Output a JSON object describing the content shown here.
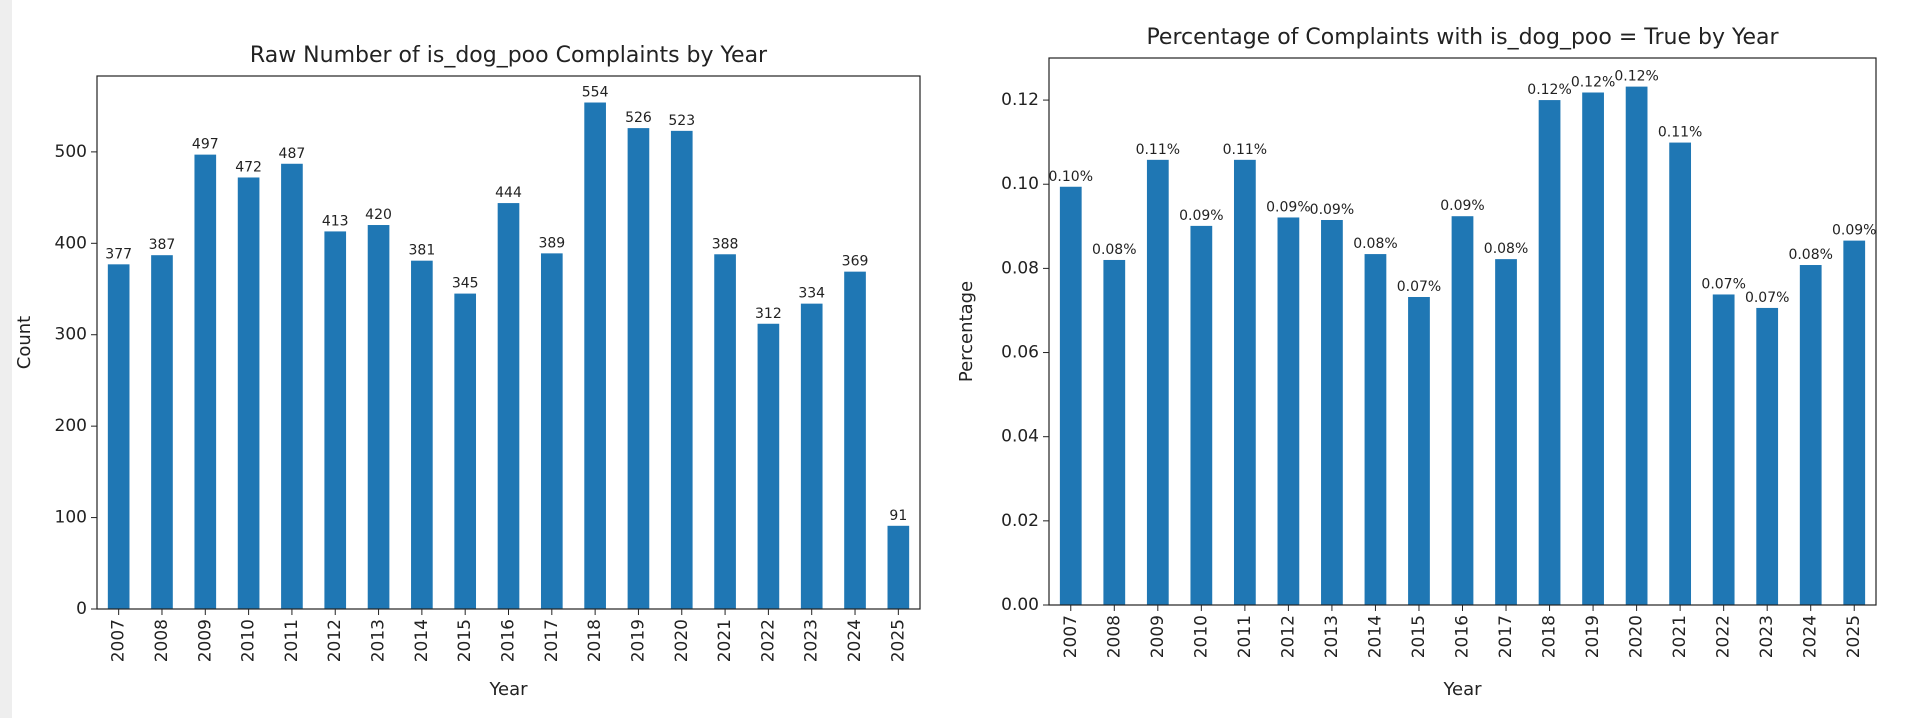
{
  "chart_data": [
    {
      "type": "bar",
      "title": "Raw Number of is_dog_poo Complaints by Year",
      "x_label": "Year",
      "y_label": "Count",
      "categories": [
        "2007",
        "2008",
        "2009",
        "2010",
        "2011",
        "2012",
        "2013",
        "2014",
        "2015",
        "2016",
        "2017",
        "2018",
        "2019",
        "2020",
        "2021",
        "2022",
        "2023",
        "2024",
        "2025"
      ],
      "values": [
        377,
        387,
        497,
        472,
        487,
        413,
        420,
        381,
        345,
        444,
        389,
        554,
        526,
        523,
        388,
        312,
        334,
        369,
        91
      ],
      "color": "#1f77b4",
      "ylim": [
        0,
        583
      ],
      "yticks": [
        0,
        100,
        200,
        300,
        400,
        500
      ]
    },
    {
      "type": "bar",
      "title": "Percentage of Complaints with is_dog_poo = True by Year",
      "x_label": "Year",
      "y_label": "Percentage",
      "categories": [
        "2007",
        "2008",
        "2009",
        "2010",
        "2011",
        "2012",
        "2013",
        "2014",
        "2015",
        "2016",
        "2017",
        "2018",
        "2019",
        "2020",
        "2021",
        "2022",
        "2023",
        "2024",
        "2025"
      ],
      "values": [
        0.0994,
        0.082,
        0.1058,
        0.0901,
        0.1058,
        0.0921,
        0.0915,
        0.0834,
        0.0732,
        0.0924,
        0.0822,
        0.12,
        0.1218,
        0.1232,
        0.1099,
        0.0738,
        0.0706,
        0.0808,
        0.0866
      ],
      "value_labels": [
        "0.10%",
        "0.08%",
        "0.11%",
        "0.09%",
        "0.11%",
        "0.09%",
        "0.09%",
        "0.08%",
        "0.07%",
        "0.09%",
        "0.08%",
        "0.12%",
        "0.12%",
        "0.12%",
        "0.11%",
        "0.07%",
        "0.07%",
        "0.08%",
        "0.09%"
      ],
      "color": "#1f77b4",
      "ylim": [
        0,
        0.13
      ],
      "yticks": [
        {
          "value": 0,
          "label": "0.00"
        },
        {
          "value": 0.02,
          "label": "0.02"
        },
        {
          "value": 0.04,
          "label": "0.04"
        },
        {
          "value": 0.06,
          "label": "0.06"
        },
        {
          "value": 0.08,
          "label": "0.08"
        },
        {
          "value": 0.1,
          "label": "0.10"
        },
        {
          "value": 0.12,
          "label": "0.12"
        }
      ]
    }
  ]
}
